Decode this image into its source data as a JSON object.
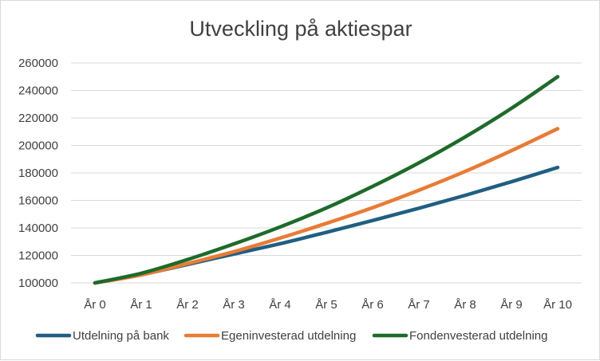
{
  "chart_data": {
    "type": "line",
    "title": "Utveckling på aktiespar",
    "xlabel": "",
    "ylabel": "",
    "categories": [
      "År 0",
      "År 1",
      "År 2",
      "År 3",
      "År 4",
      "År 5",
      "År 6",
      "År 7",
      "År 8",
      "År 9",
      "År 10"
    ],
    "ylim": [
      100000,
      260000
    ],
    "yticks": [
      100000,
      120000,
      140000,
      160000,
      180000,
      200000,
      220000,
      240000,
      260000
    ],
    "ytick_labels": [
      "100000",
      "120000",
      "140000",
      "160000",
      "180000",
      "200000",
      "220000",
      "240000",
      "260000"
    ],
    "grid": true,
    "legend_position": "bottom",
    "series": [
      {
        "name": "Utdelning på bank",
        "color": "#1f5f82",
        "values": [
          100000,
          106000,
          113400,
          121000,
          128500,
          136800,
          145400,
          154300,
          163700,
          173600,
          184000
        ]
      },
      {
        "name": "Egeninvesterad utdelning",
        "color": "#e97b35",
        "values": [
          100000,
          105800,
          114000,
          122700,
          132600,
          143300,
          154700,
          167400,
          181100,
          196200,
          212200
        ]
      },
      {
        "name": "Fondenvesterad utdelning",
        "color": "#1d6b2a",
        "values": [
          100000,
          107000,
          117000,
          128300,
          140700,
          154500,
          170200,
          187300,
          206200,
          227000,
          250000
        ]
      }
    ]
  }
}
